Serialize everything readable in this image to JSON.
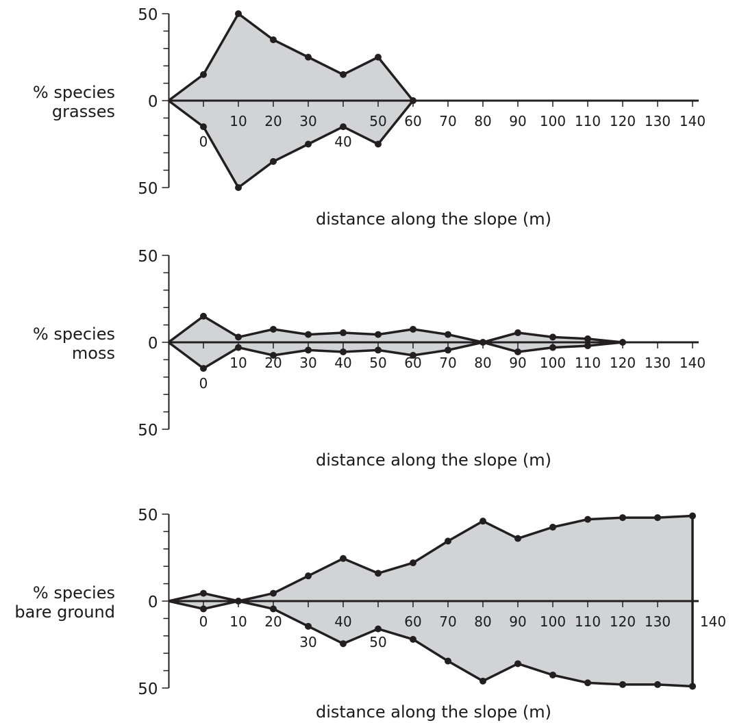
{
  "chart_data": [
    {
      "type": "area",
      "title": "",
      "ylabel_lines": [
        "% species",
        "grasses"
      ],
      "xlabel": "distance along the slope (m)",
      "ytick_labels": [
        "50",
        "0",
        "50"
      ],
      "ylim": [
        -50,
        50
      ],
      "xlim": [
        -10,
        140
      ],
      "x_ticks": [
        0,
        10,
        20,
        30,
        40,
        50,
        60,
        70,
        80,
        90,
        100,
        110,
        120,
        130,
        140
      ],
      "x_tick_labels": [
        {
          "x": 0,
          "text": "0",
          "below": true
        },
        {
          "x": 10,
          "text": "10",
          "below": false
        },
        {
          "x": 20,
          "text": "20",
          "below": false
        },
        {
          "x": 30,
          "text": "30",
          "below": false
        },
        {
          "x": 40,
          "text": "40",
          "below": true
        },
        {
          "x": 50,
          "text": "50",
          "below": false
        },
        {
          "x": 60,
          "text": "60",
          "below": false
        },
        {
          "x": 70,
          "text": "70",
          "below": false
        },
        {
          "x": 80,
          "text": "80",
          "below": false
        },
        {
          "x": 90,
          "text": "90",
          "below": false
        },
        {
          "x": 100,
          "text": "100",
          "below": false
        },
        {
          "x": 110,
          "text": "110",
          "below": false
        },
        {
          "x": 120,
          "text": "120",
          "below": false
        },
        {
          "x": 130,
          "text": "130",
          "below": false
        },
        {
          "x": 140,
          "text": "140",
          "below": false
        }
      ],
      "points": [
        {
          "x": -10,
          "y": 0,
          "marker": false
        },
        {
          "x": 0,
          "y": 15,
          "marker": true
        },
        {
          "x": 10,
          "y": 50,
          "marker": true
        },
        {
          "x": 20,
          "y": 35,
          "marker": true
        },
        {
          "x": 30,
          "y": 25,
          "marker": true
        },
        {
          "x": 40,
          "y": 15,
          "marker": true
        },
        {
          "x": 50,
          "y": 25,
          "marker": true
        },
        {
          "x": 60,
          "y": 0,
          "marker": true
        }
      ],
      "end_line": false
    },
    {
      "type": "area",
      "title": "",
      "ylabel_lines": [
        "% species",
        "moss"
      ],
      "xlabel": "distance along the slope (m)",
      "ytick_labels": [
        "50",
        "0",
        "50"
      ],
      "ylim": [
        -50,
        50
      ],
      "xlim": [
        -10,
        140
      ],
      "x_ticks": [
        0,
        10,
        20,
        30,
        40,
        50,
        60,
        70,
        80,
        90,
        100,
        110,
        120,
        130,
        140
      ],
      "x_tick_labels": [
        {
          "x": 0,
          "text": "0",
          "below": true
        },
        {
          "x": 10,
          "text": "10",
          "below": false
        },
        {
          "x": 20,
          "text": "20",
          "below": false
        },
        {
          "x": 30,
          "text": "30",
          "below": false
        },
        {
          "x": 40,
          "text": "40",
          "below": false
        },
        {
          "x": 50,
          "text": "50",
          "below": false
        },
        {
          "x": 60,
          "text": "60",
          "below": false
        },
        {
          "x": 70,
          "text": "70",
          "below": false
        },
        {
          "x": 80,
          "text": "80",
          "below": false
        },
        {
          "x": 90,
          "text": "90",
          "below": false
        },
        {
          "x": 100,
          "text": "100",
          "below": false
        },
        {
          "x": 110,
          "text": "110",
          "below": false
        },
        {
          "x": 120,
          "text": "120",
          "below": false
        },
        {
          "x": 130,
          "text": "130",
          "below": false
        },
        {
          "x": 140,
          "text": "140",
          "below": false
        }
      ],
      "points": [
        {
          "x": -10,
          "y": 0,
          "marker": false
        },
        {
          "x": 0,
          "y": 15,
          "marker": true
        },
        {
          "x": 10,
          "y": 3,
          "marker": true
        },
        {
          "x": 20,
          "y": 7.5,
          "marker": true
        },
        {
          "x": 30,
          "y": 4.5,
          "marker": true
        },
        {
          "x": 40,
          "y": 5.5,
          "marker": true
        },
        {
          "x": 50,
          "y": 4.5,
          "marker": true
        },
        {
          "x": 60,
          "y": 7.5,
          "marker": true
        },
        {
          "x": 70,
          "y": 4.5,
          "marker": true
        },
        {
          "x": 80,
          "y": 0,
          "marker": true
        },
        {
          "x": 90,
          "y": 5.5,
          "marker": true
        },
        {
          "x": 100,
          "y": 3,
          "marker": true
        },
        {
          "x": 110,
          "y": 2,
          "marker": true
        },
        {
          "x": 120,
          "y": 0,
          "marker": true
        }
      ],
      "end_line": false
    },
    {
      "type": "area",
      "title": "",
      "ylabel_lines": [
        "% species",
        "bare ground"
      ],
      "xlabel": "distance along the slope (m)",
      "ytick_labels": [
        "50",
        "0",
        "50"
      ],
      "ylim": [
        -50,
        50
      ],
      "xlim": [
        -10,
        140
      ],
      "x_ticks": [
        0,
        10,
        20,
        30,
        40,
        50,
        60,
        70,
        80,
        90,
        100,
        110,
        120,
        130,
        140
      ],
      "x_tick_labels": [
        {
          "x": 0,
          "text": "0",
          "below": false
        },
        {
          "x": 10,
          "text": "10",
          "below": false
        },
        {
          "x": 20,
          "text": "20",
          "below": false
        },
        {
          "x": 30,
          "text": "30",
          "below": true
        },
        {
          "x": 40,
          "text": "40",
          "below": false
        },
        {
          "x": 50,
          "text": "50",
          "below": true
        },
        {
          "x": 60,
          "text": "60",
          "below": false
        },
        {
          "x": 70,
          "text": "70",
          "below": false
        },
        {
          "x": 80,
          "text": "80",
          "below": false
        },
        {
          "x": 90,
          "text": "90",
          "below": false
        },
        {
          "x": 100,
          "text": "100",
          "below": false
        },
        {
          "x": 110,
          "text": "110",
          "below": false
        },
        {
          "x": 120,
          "text": "120",
          "below": false
        },
        {
          "x": 130,
          "text": "130",
          "below": false
        },
        {
          "x": 140,
          "text": "140",
          "below": false,
          "outside": true
        }
      ],
      "points": [
        {
          "x": -10,
          "y": 0,
          "marker": false
        },
        {
          "x": 0,
          "y": 4.5,
          "marker": true
        },
        {
          "x": 10,
          "y": 0,
          "marker": true
        },
        {
          "x": 20,
          "y": 4.5,
          "marker": true
        },
        {
          "x": 30,
          "y": 14.5,
          "marker": true
        },
        {
          "x": 40,
          "y": 24.5,
          "marker": true
        },
        {
          "x": 50,
          "y": 16,
          "marker": true
        },
        {
          "x": 60,
          "y": 22,
          "marker": true
        },
        {
          "x": 70,
          "y": 34.5,
          "marker": true
        },
        {
          "x": 80,
          "y": 46,
          "marker": true
        },
        {
          "x": 90,
          "y": 36,
          "marker": true
        },
        {
          "x": 100,
          "y": 42.5,
          "marker": true
        },
        {
          "x": 110,
          "y": 47,
          "marker": true
        },
        {
          "x": 120,
          "y": 48,
          "marker": true
        },
        {
          "x": 130,
          "y": 48,
          "marker": true
        },
        {
          "x": 140,
          "y": 49,
          "marker": true
        }
      ],
      "end_line": true
    }
  ],
  "colors": {
    "fill": "#d2d3d5",
    "line": "#231f20"
  }
}
